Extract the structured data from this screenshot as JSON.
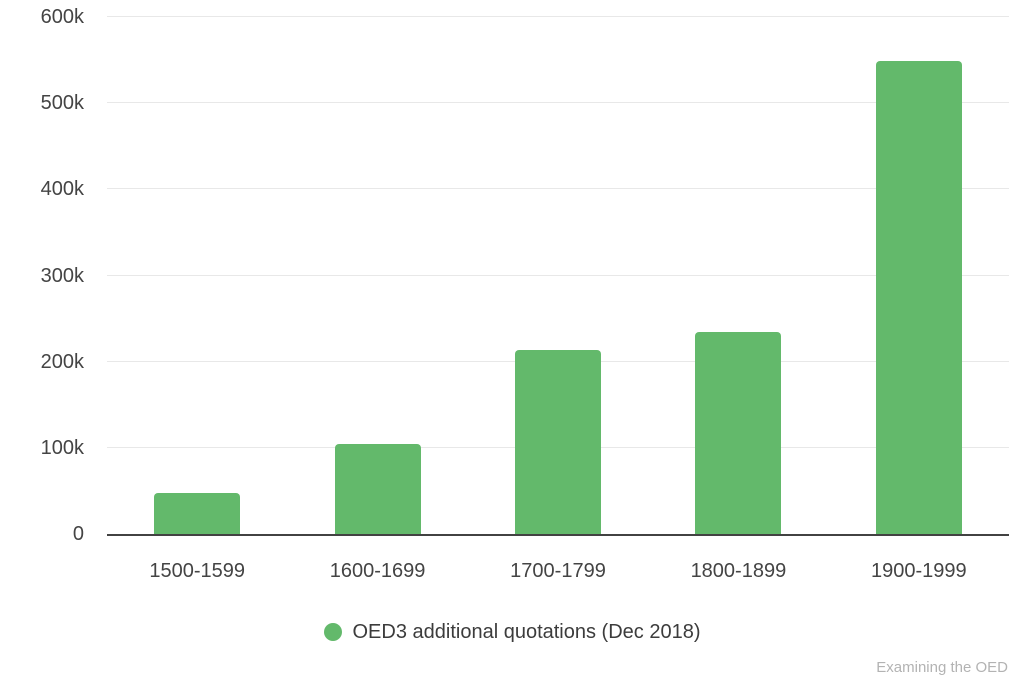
{
  "colors": {
    "background": "#ffffff",
    "bar": "#63b96b",
    "axis_line": "#424242",
    "gridline": "#e8e8e8",
    "tick_label": "#444444",
    "legend_text": "#3c3c3c",
    "watermark": "#b3b3b3"
  },
  "chart_data": {
    "type": "bar",
    "categories": [
      "1500-1599",
      "1600-1699",
      "1700-1799",
      "1800-1899",
      "1900-1999"
    ],
    "series": [
      {
        "name": "OED3 additional quotations (Dec 2018)",
        "values": [
          48000,
          105000,
          213000,
          235000,
          549000
        ],
        "color": "#63b96b"
      }
    ],
    "title": "",
    "xlabel": "",
    "ylabel": "",
    "ylim": [
      0,
      600000
    ],
    "ytick_interval": 100000,
    "ytick_labels": [
      "0",
      "100k",
      "200k",
      "300k",
      "400k",
      "500k",
      "600k"
    ],
    "grid": true,
    "legend_position": "bottom"
  },
  "legend": {
    "marker": "circle",
    "label": "OED3 additional quotations (Dec 2018)"
  },
  "watermark": "Examining the OED"
}
